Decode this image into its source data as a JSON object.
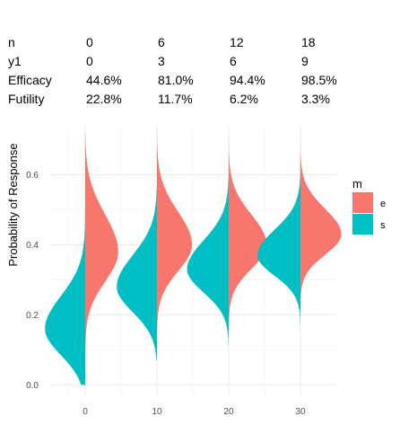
{
  "chart_data": {
    "type": "split-violin",
    "title": "",
    "xlabel": "",
    "ylabel": "Probability of Response",
    "ylim": [
      -0.03,
      0.74
    ],
    "xlim": [
      -5,
      35
    ],
    "y_ticks": [
      0.0,
      0.2,
      0.4,
      0.6
    ],
    "y_tick_labels": [
      "0.0",
      "0.2",
      "0.4",
      "0.6"
    ],
    "x_ticks": [
      0,
      10,
      20,
      30
    ],
    "x_tick_labels": [
      "0",
      "10",
      "20",
      "30"
    ],
    "grid": true,
    "legend": {
      "title": "m",
      "position": "right",
      "items": [
        {
          "label": "e",
          "color": "#F8766D"
        },
        {
          "label": "s",
          "color": "#00BFC4"
        }
      ]
    },
    "stat_table": {
      "row_labels": [
        "n",
        "y1",
        "Efficacy",
        "Futility"
      ],
      "columns": [
        {
          "x": 0,
          "values": [
            "0",
            "0",
            "44.6%",
            "22.8%"
          ]
        },
        {
          "x": 10,
          "values": [
            "6",
            "3",
            "81.0%",
            "11.7%"
          ]
        },
        {
          "x": 20,
          "values": [
            "12",
            "6",
            "94.4%",
            "6.2%"
          ]
        },
        {
          "x": 30,
          "values": [
            "18",
            "9",
            "98.5%",
            "3.3%"
          ]
        }
      ]
    },
    "series": [
      {
        "name": "e",
        "color": "#F8766D",
        "side": "right",
        "violins": [
          {
            "x": 0,
            "mode": 0.38,
            "spread": 0.085,
            "ymin": 0.09,
            "ymax": 0.72,
            "max_width": 4.6
          },
          {
            "x": 10,
            "mode": 0.4,
            "spread": 0.075,
            "ymin": 0.1,
            "ymax": 0.73,
            "max_width": 4.9
          },
          {
            "x": 20,
            "mode": 0.4,
            "spread": 0.068,
            "ymin": 0.1,
            "ymax": 0.72,
            "max_width": 5.3
          },
          {
            "x": 30,
            "mode": 0.43,
            "spread": 0.058,
            "ymin": 0.23,
            "ymax": 0.72,
            "max_width": 5.7
          }
        ]
      },
      {
        "name": "s",
        "color": "#00BFC4",
        "side": "left",
        "violins": [
          {
            "x": 0,
            "mode": 0.16,
            "spread": 0.075,
            "ymin": 0.0,
            "ymax": 0.54,
            "max_width": 5.6
          },
          {
            "x": 10,
            "mode": 0.28,
            "spread": 0.072,
            "ymin": 0.07,
            "ymax": 0.56,
            "max_width": 5.6
          },
          {
            "x": 20,
            "mode": 0.33,
            "spread": 0.066,
            "ymin": 0.11,
            "ymax": 0.59,
            "max_width": 5.8
          },
          {
            "x": 30,
            "mode": 0.37,
            "spread": 0.058,
            "ymin": 0.14,
            "ymax": 0.63,
            "max_width": 6.0
          }
        ]
      }
    ]
  }
}
